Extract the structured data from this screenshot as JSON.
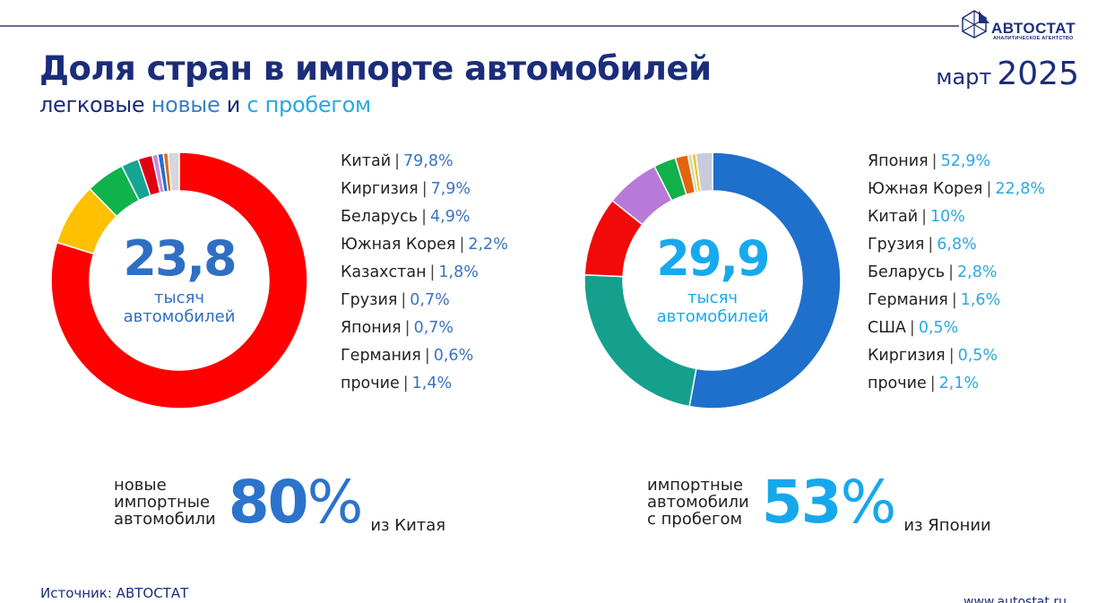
{
  "header": {
    "title": "Доля стран в импорте автомобилей",
    "subtitle_part1": "легковые ",
    "subtitle_part2": "новые",
    "subtitle_part3": " и ",
    "subtitle_part4": "с пробегом",
    "date_month": "март",
    "date_year": "2025"
  },
  "logo": {
    "name": "АВТОСТАТ",
    "tagline": "АНАЛИТИЧЕСКОЕ АГЕНТСТВО"
  },
  "chart_data": [
    {
      "type": "pie",
      "title": "новые",
      "center_value": "23,8",
      "center_unit_line1": "тысяч",
      "center_unit_line2": "автомобилей",
      "accent_color": "#2f6fc3",
      "slices": [
        {
          "label": "Китай",
          "value": 79.8,
          "display": "79,8%",
          "color": "#ff0000"
        },
        {
          "label": "Киргизия",
          "value": 7.9,
          "display": "7,9%",
          "color": "#ffc000"
        },
        {
          "label": "Беларусь",
          "value": 4.9,
          "display": "4,9%",
          "color": "#10b24b"
        },
        {
          "label": "Южная Корея",
          "value": 2.2,
          "display": "2,2%",
          "color": "#15a594"
        },
        {
          "label": "Казахстан",
          "value": 1.8,
          "display": "1,8%",
          "color": "#e00010"
        },
        {
          "label": "Грузия",
          "value": 0.7,
          "display": "0,7%",
          "color": "#c48ee0"
        },
        {
          "label": "Япония",
          "value": 0.7,
          "display": "0,7%",
          "color": "#1f6fd0"
        },
        {
          "label": "Германия",
          "value": 0.6,
          "display": "0,6%",
          "color": "#e06a16"
        },
        {
          "label": "прочие",
          "value": 1.4,
          "display": "1,4%",
          "color": "#d5d7dc"
        }
      ]
    },
    {
      "type": "pie",
      "title": "с пробегом",
      "center_value": "29,9",
      "center_unit_line1": "тысяч",
      "center_unit_line2": "автомобилей",
      "accent_color": "#17a9ee",
      "slices": [
        {
          "label": "Япония",
          "value": 52.9,
          "display": "52,9%",
          "color": "#1e70cc"
        },
        {
          "label": "Южная Корея",
          "value": 22.8,
          "display": "22,8%",
          "color": "#14a08c"
        },
        {
          "label": "Китай",
          "value": 10,
          "display": "10%",
          "color": "#f20a0a"
        },
        {
          "label": "Грузия",
          "value": 6.8,
          "display": "6,8%",
          "color": "#b77ad8"
        },
        {
          "label": "Беларусь",
          "value": 2.8,
          "display": "2,8%",
          "color": "#11b04a"
        },
        {
          "label": "Германия",
          "value": 1.6,
          "display": "1,6%",
          "color": "#e2640f"
        },
        {
          "label": "США",
          "value": 0.5,
          "display": "0,5%",
          "color": "#c7e0a8"
        },
        {
          "label": "Киргизия",
          "value": 0.5,
          "display": "0,5%",
          "color": "#f7c21a"
        },
        {
          "label": "прочие",
          "value": 2.1,
          "display": "2,1%",
          "color": "#c6ccdc"
        }
      ]
    }
  ],
  "stats": {
    "new": {
      "desc_line1": "новые",
      "desc_line2": "импортные",
      "desc_line3": "автомобили",
      "number": "80",
      "pct": "%",
      "from": "из Китая",
      "color": "#2b73cc"
    },
    "used": {
      "desc_line1": "импортные",
      "desc_line2": "автомобили",
      "desc_line3": "с пробегом",
      "number": "53",
      "pct": "%",
      "from": "из Японии",
      "color": "#16a8ec"
    }
  },
  "footer": {
    "source": "Источник: АВТОСТАТ",
    "url": "www.autostat.ru"
  }
}
